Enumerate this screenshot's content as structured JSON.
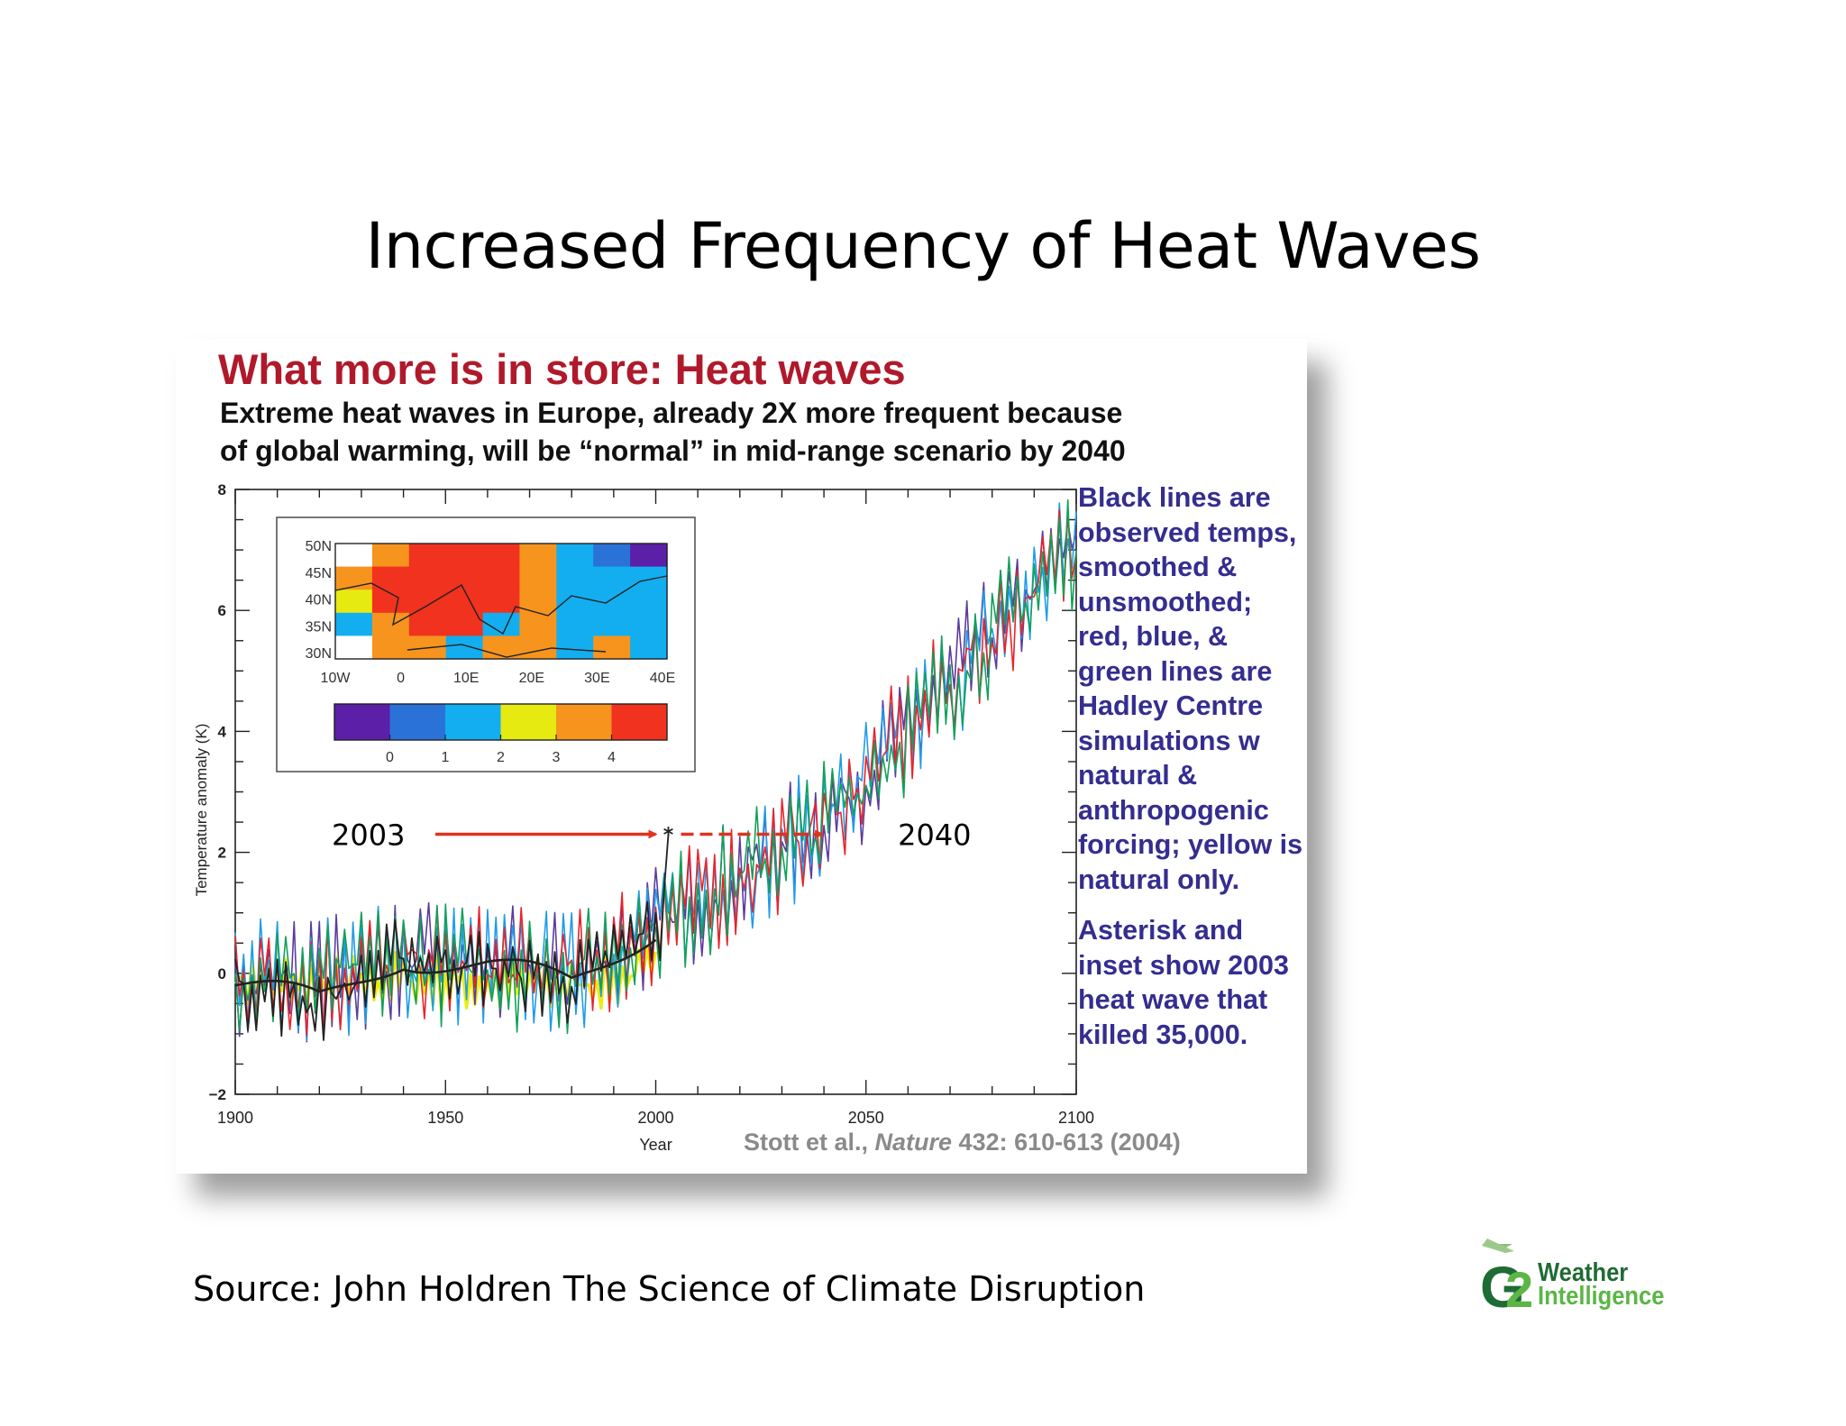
{
  "slide": {
    "title": "Increased Frequency of  Heat Waves",
    "source": "Source:  John Holdren The Science of Climate Disruption",
    "logo": {
      "word1": "Weather",
      "word2": "Intelligence",
      "mark": "G2"
    }
  },
  "figure": {
    "title": "What more is in store:  Heat waves",
    "subtitle_lines": [
      "Extreme heat waves in Europe, already 2X more frequent because",
      "of global warming, will be “normal” in mid-range scenario by 2040"
    ],
    "side_notes": [
      "Black lines are observed temps, smoothed & unsmoothed; red, blue, & green lines are Hadley Centre simulations w natural & anthropogenic forcing;  yellow is natural only.",
      "Asterisk and inset show 2003 heat wave that killed 35,000."
    ],
    "citation_authors": "Stott et al., ",
    "citation_journal": "Nature",
    "citation_rest": " 432: 610-613 (2004)",
    "annotations": [
      {
        "label": "2003",
        "x": 2003,
        "y": 2.3
      },
      {
        "label": "2040",
        "x": 2040,
        "y": 2.3
      }
    ],
    "colors": {
      "title": "#b0192b",
      "notes": "#352d8f",
      "sim_red": "#e8242b",
      "sim_blue": "#1f9ce8",
      "sim_green": "#12a05a",
      "sim_purple": "#5b3c9e",
      "natural_yellow": "#ecec10",
      "observed": "#222222",
      "arrow": "#e0331e"
    }
  },
  "chart_data": [
    {
      "type": "line",
      "xlabel": "Year",
      "ylabel": "Temperature anomaly (K)",
      "xlim": [
        1900,
        2100
      ],
      "ylim": [
        -2,
        8
      ],
      "x_ticks": [
        1900,
        1950,
        2000,
        2050,
        2100
      ],
      "y_ticks": [
        -2,
        0,
        2,
        4,
        6,
        8
      ],
      "x_tick_labels": [
        "1900",
        "1950",
        "2000",
        "2050",
        "2100"
      ],
      "y_tick_labels": [
        "−2",
        "0",
        "2",
        "4",
        "6",
        "8"
      ],
      "grid": false,
      "series_trends": {
        "x": [
          1900,
          1920,
          1940,
          1960,
          1980,
          2000,
          2020,
          2040,
          2060,
          2080,
          2100
        ],
        "simulated_all_forcings": [
          0.0,
          -0.1,
          0.2,
          0.1,
          0.0,
          0.8,
          1.6,
          2.5,
          4.0,
          5.6,
          7.1
        ],
        "natural_only": [
          -0.1,
          -0.2,
          -0.1,
          -0.2,
          -0.2,
          0.0
        ],
        "observed_smoothed": [
          -0.2,
          -0.5,
          0.3,
          0.1,
          -0.2,
          0.8
        ]
      },
      "heatwave_2003": {
        "x": 2003,
        "y": 2.3
      }
    },
    {
      "type": "heatmap",
      "x_tick_labels": [
        "10W",
        "0",
        "10E",
        "20E",
        "30E",
        "40E"
      ],
      "y_tick_labels": [
        "50N",
        "45N",
        "40N",
        "35N",
        "30N"
      ],
      "colorbar_ticks": [
        "0",
        "1",
        "2",
        "3",
        "4"
      ],
      "colorbar_colors": [
        "#5b1fa8",
        "#2b72d8",
        "#12aef0",
        "#e6ea10",
        "#f6941e",
        "#f0321e"
      ],
      "rows_north_to_south": [
        [
          -9,
          3,
          5,
          4,
          4,
          3,
          1,
          0,
          -1
        ],
        [
          3,
          4,
          4,
          5,
          4,
          3,
          1,
          1,
          1
        ],
        [
          2,
          4,
          4,
          4,
          4,
          3,
          1,
          1,
          1
        ],
        [
          1,
          3,
          4,
          4,
          1,
          3,
          1,
          1,
          1
        ],
        [
          -9,
          3,
          3,
          1,
          3,
          3,
          1,
          3,
          1
        ]
      ]
    }
  ]
}
